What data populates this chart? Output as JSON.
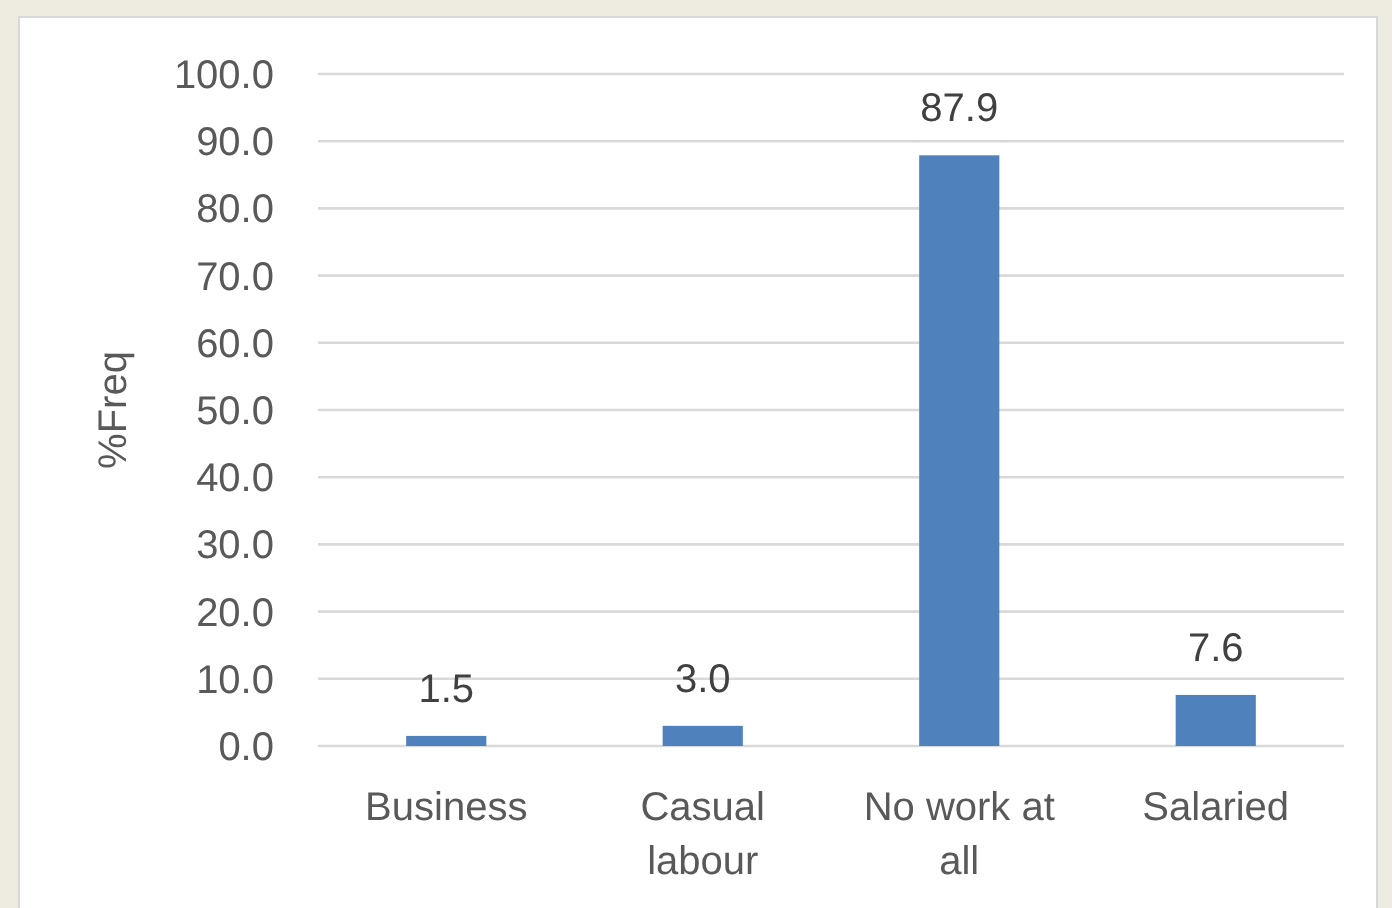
{
  "chart_data": {
    "type": "bar",
    "ylabel": "%Freq",
    "categories": [
      "Business",
      "Casual labour",
      "No work at all",
      "Salaried"
    ],
    "values": [
      1.5,
      3.0,
      87.9,
      7.6
    ],
    "color": "#4f81bd",
    "value_labels": [
      "1.5",
      "3.0",
      "87.9",
      "7.6"
    ],
    "ylim": [
      0,
      100
    ],
    "yticks": [
      {
        "value": 0,
        "label": "0.0"
      },
      {
        "value": 10,
        "label": "10.0"
      },
      {
        "value": 20,
        "label": "20.0"
      },
      {
        "value": 30,
        "label": "30.0"
      },
      {
        "value": 40,
        "label": "40.0"
      },
      {
        "value": 50,
        "label": "50.0"
      },
      {
        "value": 60,
        "label": "60.0"
      },
      {
        "value": 70,
        "label": "70.0"
      },
      {
        "value": 80,
        "label": "80.0"
      },
      {
        "value": 90,
        "label": "90.0"
      },
      {
        "value": 100,
        "label": "100.0"
      }
    ],
    "grid": "y"
  }
}
